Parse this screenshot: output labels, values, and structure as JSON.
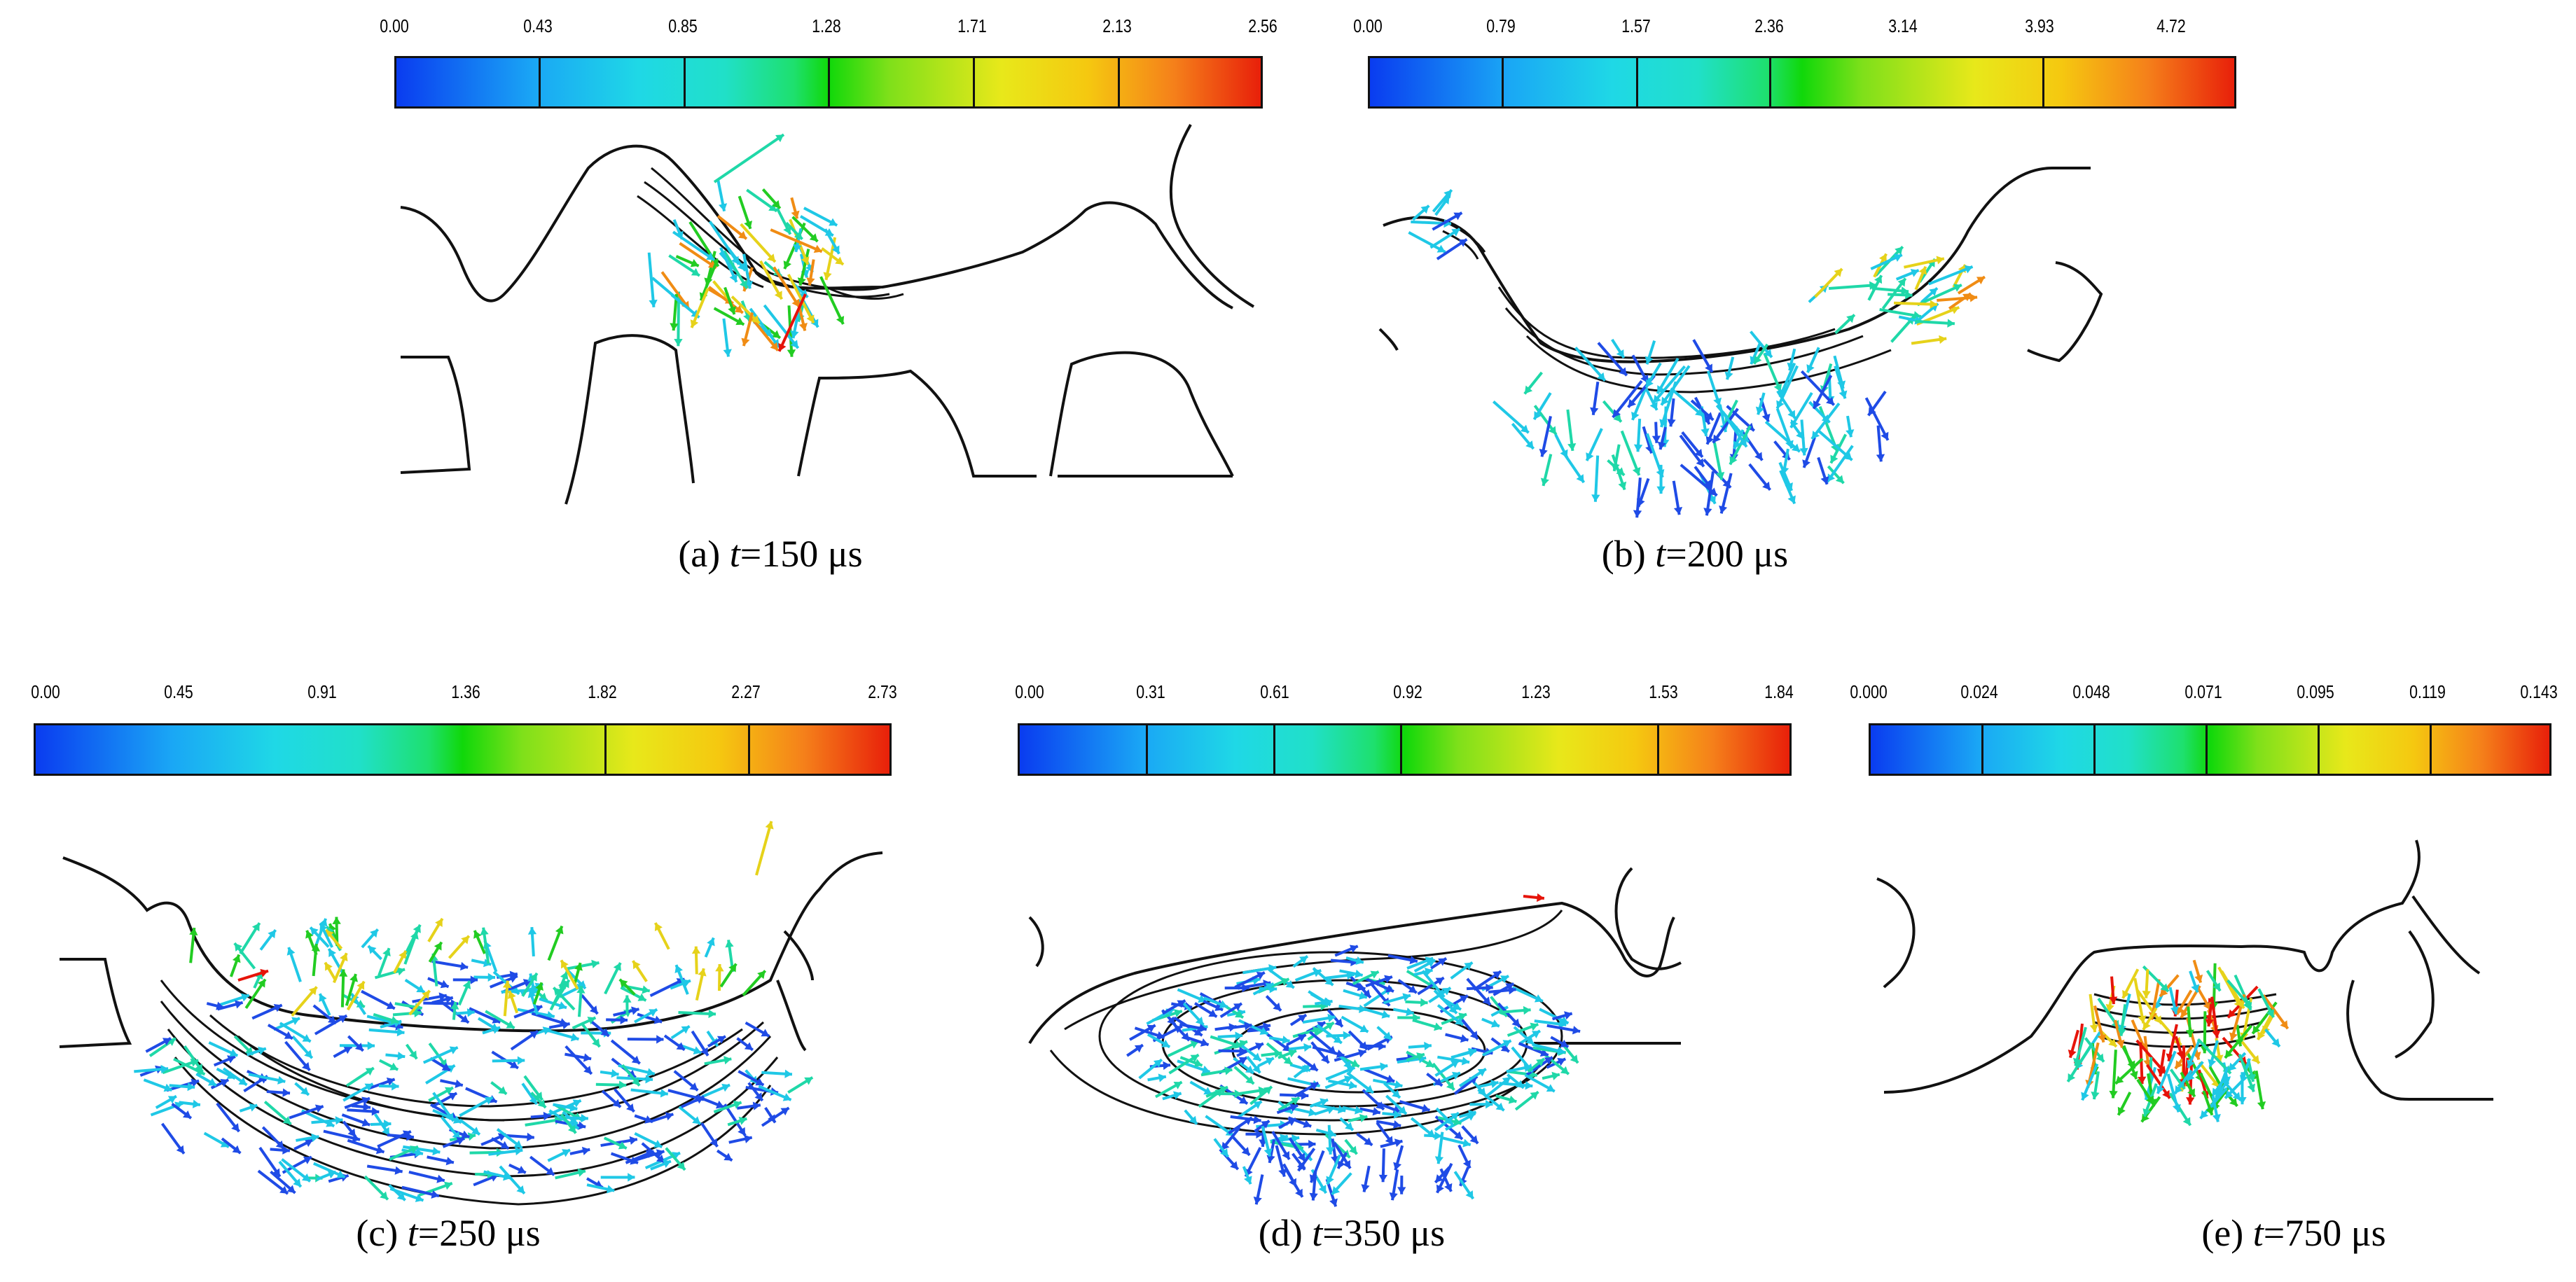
{
  "figure": {
    "panels": [
      {
        "id": "a",
        "label": "(a) ",
        "tvar": "t",
        "tval": "=150 μs",
        "ticks": [
          "0.00",
          "0.43",
          "0.85",
          "1.28",
          "1.71",
          "2.13",
          "2.56"
        ]
      },
      {
        "id": "b",
        "label": "(b) ",
        "tvar": "t",
        "tval": "=200 μs",
        "ticks": [
          "0.00",
          "0.79",
          "1.57",
          "2.36",
          "3.14",
          "3.93",
          "4.72"
        ]
      },
      {
        "id": "c",
        "label": "(c) ",
        "tvar": "t",
        "tval": "=250 μs",
        "ticks": [
          "0.00",
          "0.45",
          "0.91",
          "1.36",
          "1.82",
          "2.27",
          "2.73"
        ]
      },
      {
        "id": "d",
        "label": "(d) ",
        "tvar": "t",
        "tval": "=350 μs",
        "ticks": [
          "0.00",
          "0.31",
          "0.61",
          "0.92",
          "1.23",
          "1.53",
          "1.84"
        ]
      },
      {
        "id": "e",
        "label": "(e) ",
        "tvar": "t",
        "tval": "=750 μs",
        "ticks": [
          "0.000",
          "0.024",
          "0.048",
          "0.071",
          "0.095",
          "0.119",
          "0.143"
        ]
      }
    ],
    "colors": {
      "blue": "#1f4be6",
      "cyan": "#1fc8e6",
      "teal": "#1fd8a8",
      "green": "#22cc22",
      "yellow": "#e6d21a",
      "orange": "#f08c14",
      "red": "#e6140a",
      "outline": "#111111"
    }
  }
}
